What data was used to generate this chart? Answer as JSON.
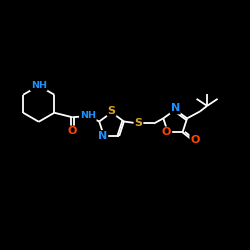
{
  "background": "#000000",
  "bond_color": "#ffffff",
  "N_color": "#1e90ff",
  "O_color": "#ff4500",
  "S_color": "#daa520",
  "figsize": [
    2.5,
    2.5
  ],
  "dpi": 100,
  "xlim": [
    0,
    10
  ],
  "ylim": [
    0,
    10
  ]
}
